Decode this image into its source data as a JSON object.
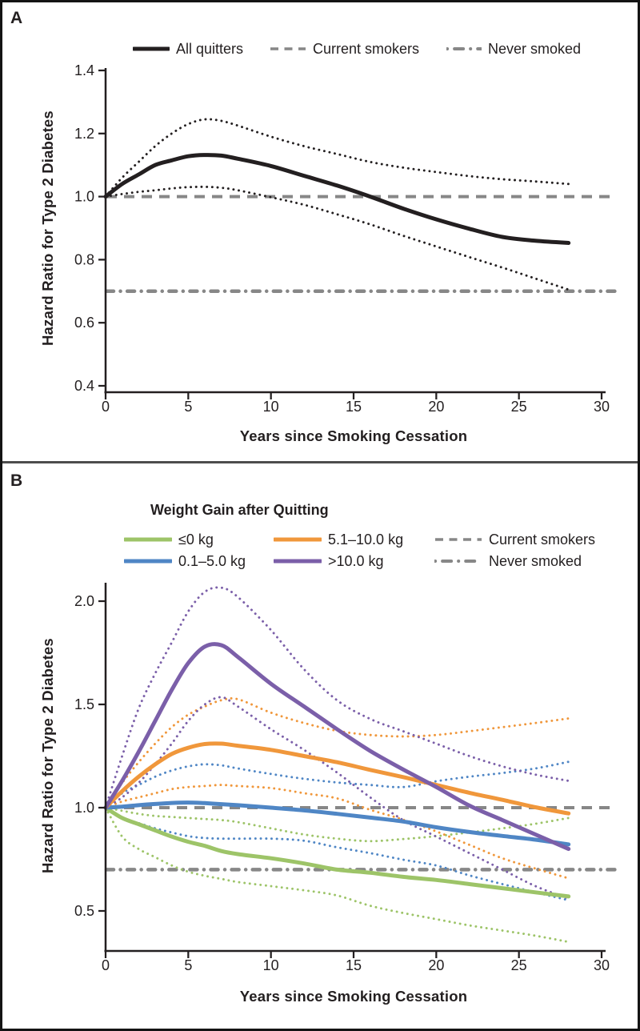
{
  "panel_a": {
    "label": "A",
    "ylabel": "Hazard Ratio for Type 2 Diabetes",
    "xlabel": "Years since Smoking Cessation",
    "legend": [
      {
        "label": "All quitters",
        "style": "solid",
        "color": "#231f20"
      },
      {
        "label": "Current smokers",
        "style": "dashed",
        "color": "#878787"
      },
      {
        "label": "Never smoked",
        "style": "dashdot",
        "color": "#878787"
      }
    ]
  },
  "panel_b": {
    "label": "B",
    "legend_title": "Weight Gain after Quitting",
    "ylabel": "Hazard Ratio for Type 2 Diabetes",
    "xlabel": "Years since Smoking Cessation",
    "legend": [
      {
        "label": "≤0 kg",
        "style": "solid",
        "color": "#9dc468"
      },
      {
        "label": "0.1–5.0 kg",
        "style": "solid",
        "color": "#4f86c5"
      },
      {
        "label": "5.1–10.0 kg",
        "style": "solid",
        "color": "#f0973b"
      },
      {
        "label": ">10.0 kg",
        "style": "solid",
        "color": "#7b5fa9"
      },
      {
        "label": "Current smokers",
        "style": "dashed",
        "color": "#878787"
      },
      {
        "label": "Never smoked",
        "style": "dashdot",
        "color": "#878787"
      }
    ]
  },
  "chart_data": [
    {
      "type": "line",
      "panel": "A",
      "title": "",
      "xlabel": "Years since Smoking Cessation",
      "ylabel": "Hazard Ratio for Type 2 Diabetes",
      "xlim": [
        0,
        30
      ],
      "ylim": [
        0.4,
        1.4
      ],
      "xticks": [
        0,
        5,
        10,
        15,
        20,
        25,
        30
      ],
      "yticks": [
        "0.4",
        "0.6",
        "0.8",
        "1.0",
        "1.2",
        "1.4"
      ],
      "grid": false,
      "legend_position": "top",
      "reference_lines": [
        {
          "name": "Current smokers",
          "y": 1.0,
          "style": "dashed",
          "color": "#878787"
        },
        {
          "name": "Never smoked",
          "y": 0.7,
          "style": "dashdot",
          "color": "#878787"
        }
      ],
      "x": [
        0,
        1,
        2,
        3,
        4,
        5,
        6,
        7,
        8,
        10,
        12,
        14,
        16,
        18,
        20,
        22,
        24,
        26,
        28
      ],
      "series": [
        {
          "name": "All quitters",
          "role": "estimate",
          "style": "solid",
          "color": "#231f20",
          "y": [
            1.0,
            1.04,
            1.07,
            1.1,
            1.115,
            1.128,
            1.132,
            1.13,
            1.12,
            1.097,
            1.066,
            1.035,
            1.0,
            0.962,
            0.928,
            0.898,
            0.872,
            0.86,
            0.853
          ]
        },
        {
          "name": "All quitters 95% CI upper",
          "role": "ci",
          "style": "dotted",
          "color": "#231f20",
          "y": [
            1.0,
            1.06,
            1.11,
            1.16,
            1.2,
            1.23,
            1.245,
            1.24,
            1.225,
            1.19,
            1.16,
            1.135,
            1.11,
            1.092,
            1.078,
            1.065,
            1.055,
            1.048,
            1.04
          ]
        },
        {
          "name": "All quitters 95% CI lower",
          "role": "ci",
          "style": "dotted",
          "color": "#231f20",
          "y": [
            1.0,
            1.008,
            1.015,
            1.02,
            1.026,
            1.03,
            1.031,
            1.028,
            1.02,
            0.998,
            0.974,
            0.944,
            0.912,
            0.876,
            0.842,
            0.808,
            0.775,
            0.74,
            0.705
          ]
        }
      ]
    },
    {
      "type": "line",
      "panel": "B",
      "title": "Weight Gain after Quitting",
      "xlabel": "Years since Smoking Cessation",
      "ylabel": "Hazard Ratio for Type 2 Diabetes",
      "xlim": [
        0,
        30
      ],
      "ylim": [
        0.5,
        2.0
      ],
      "xticks": [
        0,
        5,
        10,
        15,
        20,
        25,
        30
      ],
      "yticks": [
        "0.5",
        "1.0",
        "1.5",
        "2.0"
      ],
      "grid": false,
      "legend_position": "top",
      "reference_lines": [
        {
          "name": "Current smokers",
          "y": 1.0,
          "style": "dashed",
          "color": "#878787"
        },
        {
          "name": "Never smoked",
          "y": 0.7,
          "style": "dashdot",
          "color": "#878787"
        }
      ],
      "x": [
        0,
        1,
        2,
        3,
        4,
        5,
        6,
        7,
        8,
        10,
        12,
        14,
        16,
        18,
        20,
        22,
        24,
        26,
        28
      ],
      "series": [
        {
          "name": "≤0 kg",
          "role": "estimate",
          "style": "solid",
          "color": "#9dc468",
          "y": [
            1.0,
            0.95,
            0.92,
            0.89,
            0.86,
            0.835,
            0.815,
            0.79,
            0.775,
            0.755,
            0.73,
            0.7,
            0.685,
            0.665,
            0.65,
            0.63,
            0.61,
            0.59,
            0.57
          ]
        },
        {
          "name": "≤0 kg 95% CI upper",
          "role": "ci",
          "style": "dotted",
          "color": "#9dc468",
          "y": [
            1.0,
            0.985,
            0.97,
            0.96,
            0.955,
            0.95,
            0.945,
            0.94,
            0.93,
            0.9,
            0.87,
            0.85,
            0.838,
            0.848,
            0.862,
            0.88,
            0.9,
            0.922,
            0.95
          ]
        },
        {
          "name": "≤0 kg 95% CI lower",
          "role": "ci",
          "style": "dotted",
          "color": "#9dc468",
          "y": [
            1.0,
            0.86,
            0.8,
            0.76,
            0.72,
            0.69,
            0.67,
            0.655,
            0.64,
            0.62,
            0.6,
            0.575,
            0.525,
            0.49,
            0.46,
            0.43,
            0.405,
            0.38,
            0.35
          ]
        },
        {
          "name": "0.1–5.0 kg",
          "role": "estimate",
          "style": "solid",
          "color": "#4f86c5",
          "y": [
            1.0,
            1.005,
            1.012,
            1.018,
            1.023,
            1.025,
            1.022,
            1.017,
            1.012,
            1.0,
            0.987,
            0.97,
            0.952,
            0.933,
            0.905,
            0.882,
            0.863,
            0.845,
            0.822
          ]
        },
        {
          "name": "0.1–5.0 kg 95% CI upper",
          "role": "ci",
          "style": "dotted",
          "color": "#4f86c5",
          "y": [
            1.0,
            1.07,
            1.11,
            1.15,
            1.18,
            1.2,
            1.21,
            1.205,
            1.19,
            1.163,
            1.14,
            1.122,
            1.11,
            1.1,
            1.128,
            1.15,
            1.168,
            1.19,
            1.222
          ]
        },
        {
          "name": "0.1–5.0 kg 95% CI lower",
          "role": "ci",
          "style": "dotted",
          "color": "#4f86c5",
          "y": [
            1.0,
            0.95,
            0.925,
            0.9,
            0.88,
            0.862,
            0.853,
            0.85,
            0.85,
            0.85,
            0.84,
            0.808,
            0.78,
            0.748,
            0.72,
            0.672,
            0.63,
            0.59,
            0.552
          ]
        },
        {
          "name": "5.1–10.0 kg",
          "role": "estimate",
          "style": "solid",
          "color": "#f0973b",
          "y": [
            1.0,
            1.08,
            1.15,
            1.21,
            1.26,
            1.29,
            1.308,
            1.31,
            1.3,
            1.28,
            1.25,
            1.22,
            1.183,
            1.148,
            1.11,
            1.072,
            1.038,
            1.002,
            0.972
          ]
        },
        {
          "name": "5.1–10.0 kg 95% CI upper",
          "role": "ci",
          "style": "dotted",
          "color": "#f0973b",
          "y": [
            1.0,
            1.12,
            1.22,
            1.31,
            1.39,
            1.45,
            1.49,
            1.52,
            1.525,
            1.46,
            1.41,
            1.372,
            1.352,
            1.345,
            1.352,
            1.37,
            1.39,
            1.41,
            1.432
          ]
        },
        {
          "name": "5.1–10.0 kg 95% CI lower",
          "role": "ci",
          "style": "dotted",
          "color": "#f0973b",
          "y": [
            1.0,
            1.03,
            1.05,
            1.07,
            1.09,
            1.1,
            1.105,
            1.11,
            1.105,
            1.095,
            1.07,
            1.045,
            0.99,
            0.942,
            0.885,
            0.82,
            0.755,
            0.705,
            0.658
          ]
        },
        {
          "name": ">10.0 kg",
          "role": "estimate",
          "style": "solid",
          "color": "#7b5fa9",
          "y": [
            1.0,
            1.13,
            1.27,
            1.42,
            1.57,
            1.7,
            1.78,
            1.787,
            1.73,
            1.6,
            1.49,
            1.38,
            1.275,
            1.185,
            1.1,
            1.01,
            0.94,
            0.87,
            0.8
          ]
        },
        {
          "name": ">10.0 kg 95% CI upper",
          "role": "ci",
          "style": "dotted",
          "color": "#7b5fa9",
          "y": [
            1.0,
            1.25,
            1.48,
            1.65,
            1.8,
            1.95,
            2.045,
            2.065,
            2.02,
            1.86,
            1.67,
            1.52,
            1.43,
            1.37,
            1.31,
            1.25,
            1.2,
            1.16,
            1.13
          ]
        },
        {
          "name": ">10.0 kg 95% CI lower",
          "role": "ci",
          "style": "dotted",
          "color": "#7b5fa9",
          "y": [
            1.0,
            1.05,
            1.12,
            1.21,
            1.31,
            1.42,
            1.5,
            1.535,
            1.49,
            1.38,
            1.28,
            1.17,
            1.05,
            0.94,
            0.86,
            0.78,
            0.7,
            0.62,
            0.56
          ]
        }
      ]
    }
  ]
}
